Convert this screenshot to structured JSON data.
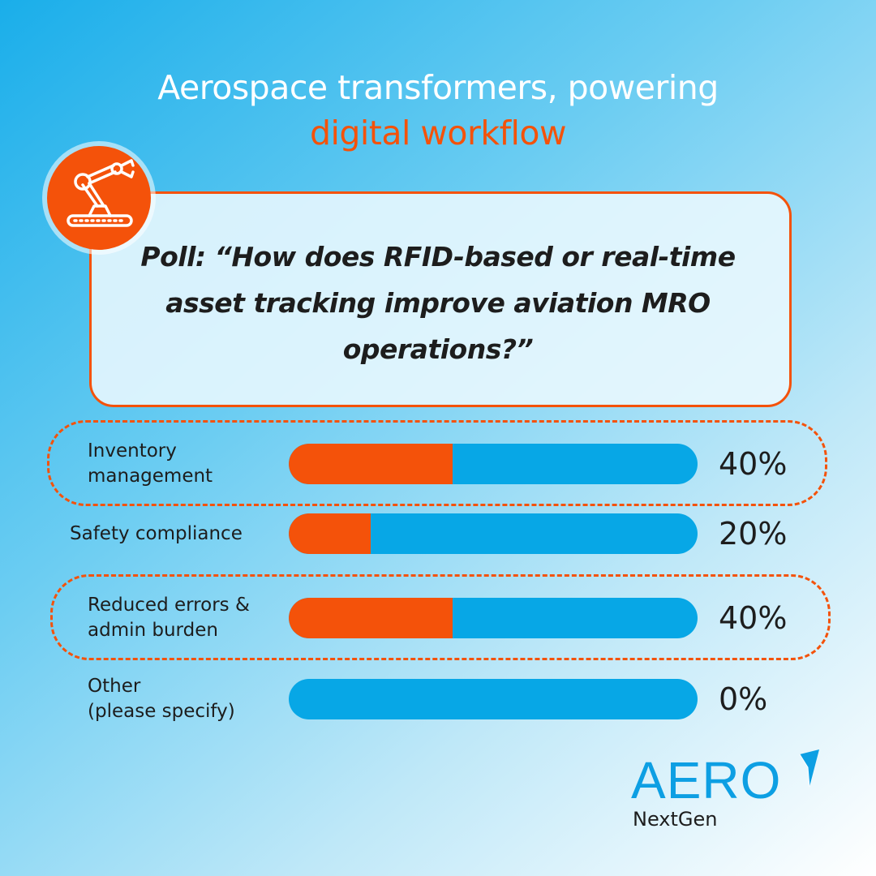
{
  "title": {
    "line1": "Aerospace transformers, powering",
    "line2": "digital workflow"
  },
  "question": "Poll: “How does RFID-based or real-time asset tracking improve aviation MRO operations?”",
  "icon": "robot-arm-icon",
  "colors": {
    "accent": "#f4520a",
    "bar": "#07a7e6",
    "brand": "#0d9fe3"
  },
  "chart_data": {
    "type": "bar",
    "orientation": "horizontal",
    "title": "",
    "xlim": [
      0,
      100
    ],
    "categories": [
      "Inventory\nmanagement",
      "Safety compliance",
      "Reduced errors &\nadmin burden",
      "Other\n(please specify)"
    ],
    "values": [
      40,
      20,
      40,
      0
    ],
    "value_labels": [
      "40%",
      "20%",
      "40%",
      "0%"
    ],
    "highlighted": [
      true,
      false,
      true,
      false
    ]
  },
  "logo": {
    "word": "AERO",
    "sub": "NextGen"
  }
}
